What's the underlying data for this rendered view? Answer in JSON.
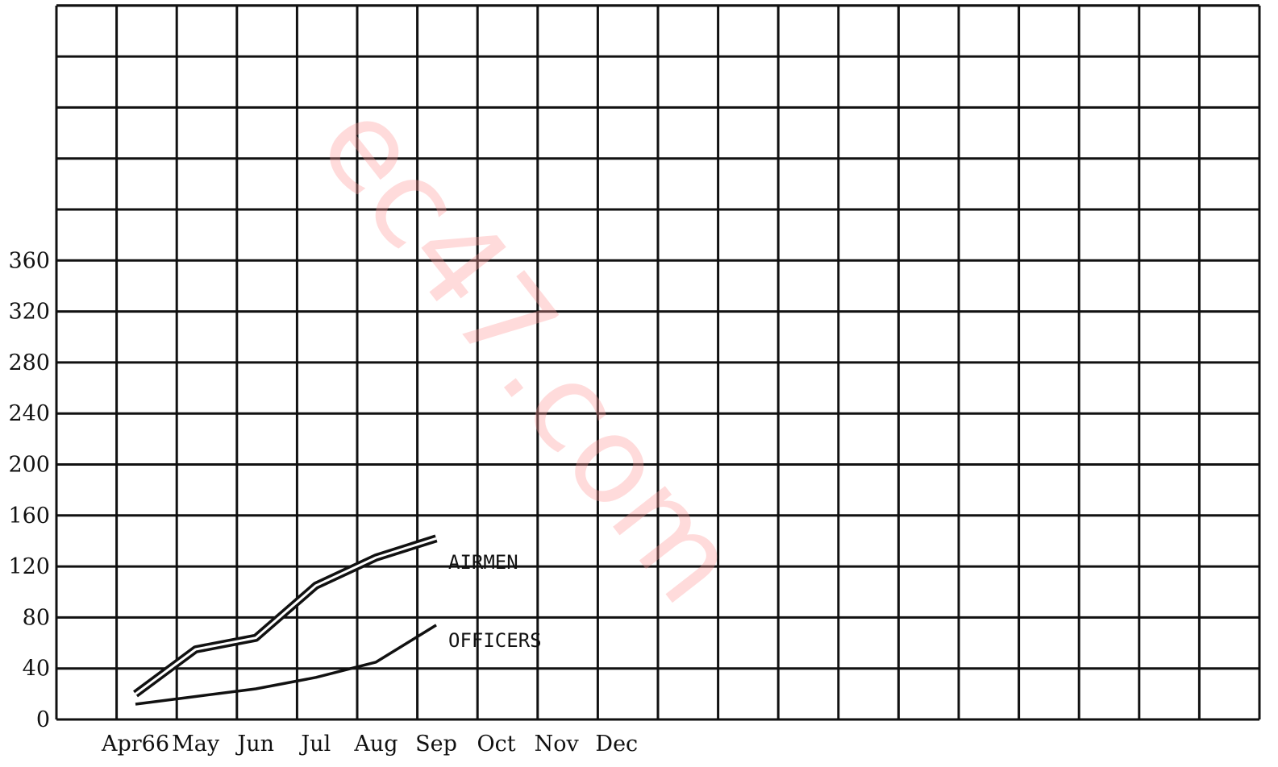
{
  "chart_data": {
    "type": "line",
    "title": "",
    "xlabel": "",
    "ylabel": "",
    "categories": [
      "Apr66",
      "May",
      "Jun",
      "Jul",
      "Aug",
      "Sep",
      "Oct",
      "Nov",
      "Dec"
    ],
    "y_ticks": [
      "0",
      "40",
      "80",
      "120",
      "160",
      "200",
      "240",
      "280",
      "320",
      "360"
    ],
    "ylim": [
      0,
      560
    ],
    "grid": true,
    "series": [
      {
        "name": "AIRMEN",
        "style": "double-line",
        "x": [
          "Apr66",
          "May",
          "Jun",
          "Jul",
          "Aug",
          "Sep"
        ],
        "values": [
          20,
          55,
          64,
          105,
          127,
          142
        ]
      },
      {
        "name": "OFFICERS",
        "style": "single-line",
        "x": [
          "Apr66",
          "May",
          "Jun",
          "Jul",
          "Aug",
          "Sep"
        ],
        "values": [
          12,
          18,
          24,
          33,
          45,
          74
        ]
      }
    ],
    "watermark": "ec47.com",
    "colors": {
      "ink": "#111111",
      "watermark": "#ff9a9a"
    }
  }
}
